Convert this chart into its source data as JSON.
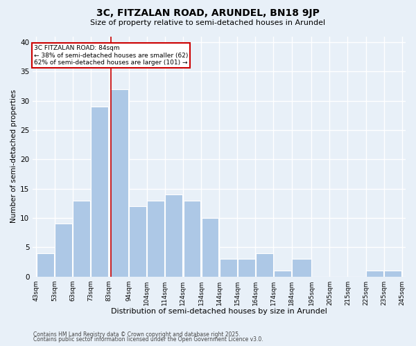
{
  "title": "3C, FITZALAN ROAD, ARUNDEL, BN18 9JP",
  "subtitle": "Size of property relative to semi-detached houses in Arundel",
  "xlabel": "Distribution of semi-detached houses by size in Arundel",
  "ylabel": "Number of semi-detached properties",
  "bin_edges": [
    43,
    53,
    63,
    73,
    83,
    94,
    104,
    114,
    124,
    134,
    144,
    154,
    164,
    174,
    184,
    195,
    205,
    215,
    225,
    235,
    245
  ],
  "bin_labels": [
    "43sqm",
    "53sqm",
    "63sqm",
    "73sqm",
    "83sqm",
    "94sqm",
    "104sqm",
    "114sqm",
    "124sqm",
    "134sqm",
    "144sqm",
    "154sqm",
    "164sqm",
    "174sqm",
    "184sqm",
    "195sqm",
    "205sqm",
    "215sqm",
    "225sqm",
    "235sqm",
    "245sqm"
  ],
  "counts": [
    4,
    9,
    13,
    29,
    32,
    12,
    13,
    14,
    13,
    10,
    3,
    3,
    4,
    1,
    3,
    0,
    0,
    0,
    1,
    1
  ],
  "bar_color": "#adc8e6",
  "bar_edge_color": "#ffffff",
  "property_size": 84,
  "vline_color": "#cc0000",
  "annotation_text": "3C FITZALAN ROAD: 84sqm\n← 38% of semi-detached houses are smaller (62)\n62% of semi-detached houses are larger (101) →",
  "annotation_box_color": "#ffffff",
  "annotation_edge_color": "#cc0000",
  "ylim": [
    0,
    41
  ],
  "yticks": [
    0,
    5,
    10,
    15,
    20,
    25,
    30,
    35,
    40
  ],
  "background_color": "#e8f0f8",
  "plot_bg_color": "#e8f0f8",
  "grid_color": "#ffffff",
  "footer_line1": "Contains HM Land Registry data © Crown copyright and database right 2025.",
  "footer_line2": "Contains public sector information licensed under the Open Government Licence v3.0."
}
